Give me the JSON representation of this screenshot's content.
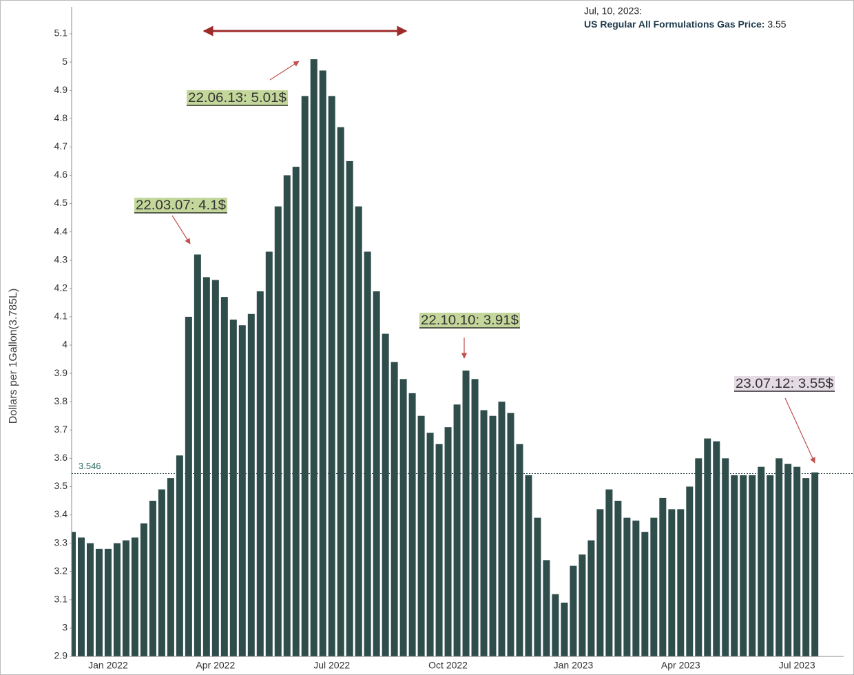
{
  "chart_data": {
    "type": "bar",
    "y_label": "Dollars per 1Gallon(3.785L)",
    "color": "#2e4d4b",
    "categories": [
      null,
      null,
      null,
      null,
      "Jan 2022",
      null,
      null,
      null,
      null,
      null,
      null,
      null,
      null,
      null,
      null,
      null,
      "Apr 2022",
      null,
      null,
      null,
      null,
      null,
      null,
      null,
      null,
      null,
      null,
      null,
      null,
      "Jul 2022",
      null,
      null,
      null,
      null,
      null,
      null,
      null,
      null,
      null,
      null,
      null,
      null,
      "Oct 2022",
      null,
      null,
      null,
      null,
      null,
      null,
      null,
      null,
      null,
      null,
      null,
      null,
      null,
      "Jan 2023",
      null,
      null,
      null,
      null,
      null,
      null,
      null,
      null,
      null,
      null,
      null,
      "Apr 2023",
      null,
      null,
      null,
      null,
      null,
      null,
      null,
      null,
      null,
      null,
      null,
      null,
      "Jul 2023",
      null,
      null
    ],
    "values": [
      3.34,
      3.32,
      3.3,
      3.28,
      3.28,
      3.3,
      3.31,
      3.32,
      3.37,
      3.45,
      3.49,
      3.53,
      3.61,
      4.1,
      4.32,
      4.24,
      4.23,
      4.17,
      4.09,
      4.07,
      4.11,
      4.19,
      4.33,
      4.49,
      4.6,
      4.63,
      4.88,
      5.01,
      4.97,
      4.88,
      4.77,
      4.65,
      4.49,
      4.33,
      4.19,
      4.04,
      3.94,
      3.88,
      3.83,
      3.75,
      3.69,
      3.65,
      3.71,
      3.79,
      3.91,
      3.88,
      3.77,
      3.75,
      3.8,
      3.76,
      3.65,
      3.54,
      3.39,
      3.24,
      3.12,
      3.09,
      3.22,
      3.26,
      3.31,
      3.42,
      3.49,
      3.45,
      3.39,
      3.38,
      3.34,
      3.39,
      3.46,
      3.42,
      3.42,
      3.5,
      3.6,
      3.67,
      3.66,
      3.6,
      3.54,
      3.54,
      3.54,
      3.57,
      3.54,
      3.6,
      3.58,
      3.57,
      3.53,
      3.55
    ],
    "ylim": [
      2.9,
      5.1
    ],
    "yticks": [
      2.9,
      3,
      3.1,
      3.2,
      3.3,
      3.4,
      3.5,
      3.6,
      3.7,
      3.8,
      3.9,
      4,
      4.1,
      4.2,
      4.3,
      4.4,
      4.5,
      4.6,
      4.7,
      4.8,
      4.9,
      5,
      5.1
    ],
    "reference_line": 3.546,
    "annotations": [
      "22.03.07: 4.1$",
      "22.06.13: 5.01$",
      "22.10.10: 3.91$",
      "23.07.12: 3.55$"
    ],
    "tooltip": {
      "date": "Jul, 10, 2023:",
      "label": "US Regular All Formulations Gas Price:",
      "value": 3.55
    }
  }
}
